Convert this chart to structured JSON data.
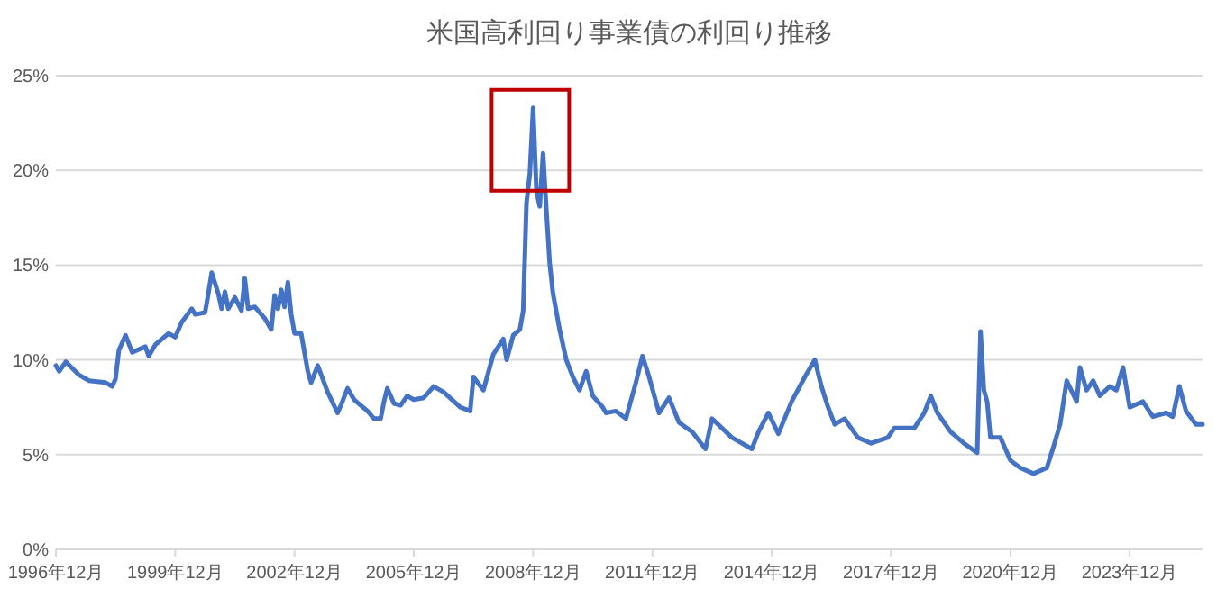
{
  "chart_data": {
    "type": "line",
    "title": "米国高利回り事業債の利回り推移",
    "grid": "y",
    "xlim": [
      "1996-12",
      "2025-10"
    ],
    "xticks": [
      {
        "value": "1996-12",
        "label": "1996年12月"
      },
      {
        "value": "1999-12",
        "label": "1999年12月"
      },
      {
        "value": "2002-12",
        "label": "2002年12月"
      },
      {
        "value": "2005-12",
        "label": "2005年12月"
      },
      {
        "value": "2008-12",
        "label": "2008年12月"
      },
      {
        "value": "2011-12",
        "label": "2011年12月"
      },
      {
        "value": "2014-12",
        "label": "2014年12月"
      },
      {
        "value": "2017-12",
        "label": "2017年12月"
      },
      {
        "value": "2020-12",
        "label": "2020年12月"
      },
      {
        "value": "2023-12",
        "label": "2023年12月"
      }
    ],
    "ylim": [
      0,
      25
    ],
    "yticks": [
      {
        "value": 0,
        "label": "0%"
      },
      {
        "value": 5,
        "label": "5%"
      },
      {
        "value": 10,
        "label": "10%"
      },
      {
        "value": 15,
        "label": "15%"
      },
      {
        "value": 20,
        "label": "20%"
      },
      {
        "value": 25,
        "label": "25%"
      }
    ],
    "x": [
      "1996-12",
      "1997-01",
      "1997-03",
      "1997-07",
      "1997-10",
      "1998-03",
      "1998-05",
      "1998-06",
      "1998-07",
      "1998-09",
      "1998-11",
      "1999-03",
      "1999-04",
      "1999-06",
      "1999-10",
      "1999-12",
      "2000-02",
      "2000-05",
      "2000-06",
      "2000-09",
      "2000-10",
      "2000-11",
      "2001-01",
      "2001-02",
      "2001-03",
      "2001-04",
      "2001-06",
      "2001-08",
      "2001-09",
      "2001-10",
      "2001-12",
      "2002-03",
      "2002-05",
      "2002-06",
      "2002-07",
      "2002-08",
      "2002-09",
      "2002-10",
      "2002-11",
      "2002-12",
      "2003-02",
      "2003-04",
      "2003-05",
      "2003-07",
      "2003-10",
      "2004-01",
      "2004-02",
      "2004-04",
      "2004-06",
      "2004-10",
      "2004-12",
      "2005-02",
      "2005-03",
      "2005-04",
      "2005-06",
      "2005-08",
      "2005-10",
      "2005-12",
      "2006-03",
      "2006-06",
      "2006-09",
      "2007-02",
      "2007-05",
      "2007-06",
      "2007-09",
      "2007-12",
      "2008-03",
      "2008-04",
      "2008-06",
      "2008-08",
      "2008-09",
      "2008-10",
      "2008-11",
      "2008-12",
      "2009-01",
      "2009-02",
      "2009-03",
      "2009-04",
      "2009-05",
      "2009-06",
      "2009-08",
      "2009-10",
      "2009-12",
      "2010-02",
      "2010-04",
      "2010-06",
      "2010-09",
      "2010-10",
      "2011-01",
      "2011-04",
      "2011-07",
      "2011-09",
      "2011-11",
      "2012-02",
      "2012-05",
      "2012-08",
      "2012-12",
      "2013-04",
      "2013-06",
      "2013-09",
      "2013-12",
      "2014-06",
      "2014-08",
      "2014-11",
      "2015-02",
      "2015-06",
      "2015-10",
      "2016-01",
      "2016-03",
      "2016-05",
      "2016-07",
      "2016-10",
      "2017-02",
      "2017-06",
      "2017-11",
      "2018-01",
      "2018-07",
      "2018-10",
      "2018-12",
      "2019-02",
      "2019-06",
      "2019-10",
      "2020-02",
      "2020-03",
      "2020-04",
      "2020-05",
      "2020-06",
      "2020-09",
      "2020-12",
      "2021-03",
      "2021-07",
      "2021-11",
      "2022-01",
      "2022-03",
      "2022-05",
      "2022-08",
      "2022-09",
      "2022-11",
      "2023-01",
      "2023-03",
      "2023-06",
      "2023-08",
      "2023-10",
      "2023-12",
      "2024-04",
      "2024-07",
      "2024-11",
      "2025-01",
      "2025-03",
      "2025-05",
      "2025-08",
      "2025-10"
    ],
    "series": [
      {
        "color": "#4472c4",
        "values": [
          9.7,
          9.4,
          9.9,
          9.2,
          8.9,
          8.8,
          8.6,
          9.0,
          10.5,
          11.3,
          10.4,
          10.7,
          10.2,
          10.8,
          11.4,
          11.2,
          12.0,
          12.7,
          12.4,
          12.5,
          13.5,
          14.6,
          13.5,
          12.7,
          13.6,
          12.7,
          13.3,
          12.6,
          14.3,
          12.7,
          12.8,
          12.2,
          11.6,
          13.4,
          12.7,
          13.7,
          12.8,
          14.1,
          12.4,
          11.4,
          11.4,
          9.4,
          8.8,
          9.7,
          8.3,
          7.2,
          7.6,
          8.5,
          7.9,
          7.3,
          6.9,
          6.9,
          7.8,
          8.5,
          7.7,
          7.6,
          8.1,
          7.9,
          8.0,
          8.6,
          8.3,
          7.5,
          7.3,
          9.1,
          8.4,
          10.3,
          11.1,
          10.0,
          11.3,
          11.6,
          12.6,
          18.3,
          19.8,
          23.3,
          18.9,
          18.1,
          20.9,
          17.9,
          15.1,
          13.5,
          11.6,
          10.0,
          9.1,
          8.4,
          9.4,
          8.1,
          7.5,
          7.2,
          7.3,
          6.9,
          8.8,
          10.2,
          9.1,
          7.2,
          8.0,
          6.7,
          6.2,
          5.3,
          6.9,
          6.4,
          5.9,
          5.3,
          6.2,
          7.2,
          6.1,
          7.8,
          9.1,
          10.0,
          8.6,
          7.5,
          6.6,
          6.9,
          5.9,
          5.6,
          5.9,
          6.4,
          6.4,
          7.2,
          8.1,
          7.2,
          6.2,
          5.6,
          5.1,
          11.5,
          8.4,
          7.8,
          5.9,
          5.9,
          4.7,
          4.3,
          4.0,
          4.3,
          5.4,
          6.6,
          8.9,
          7.8,
          9.6,
          8.4,
          8.9,
          8.1,
          8.6,
          8.4,
          9.6,
          7.5,
          7.8,
          7.0,
          7.2,
          7.0,
          8.6,
          7.3,
          6.6,
          6.6
        ]
      }
    ]
  }
}
